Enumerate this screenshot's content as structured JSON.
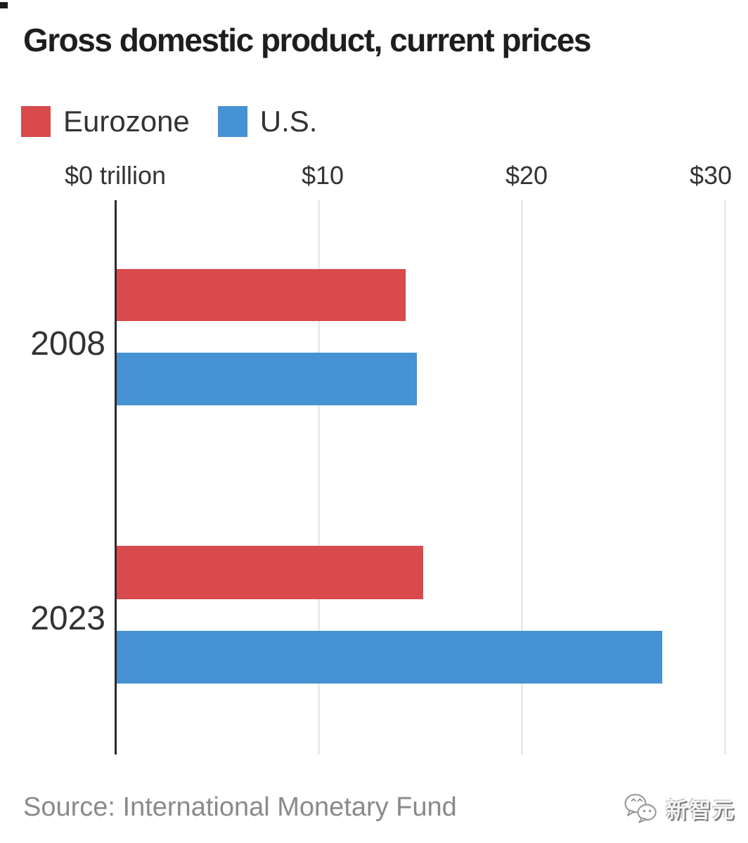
{
  "title": "Gross domestic product, current prices",
  "legend": [
    {
      "label": "Eurozone",
      "color": "#d84a4b"
    },
    {
      "label": "U.S.",
      "color": "#4692d2"
    }
  ],
  "chart_data": {
    "type": "bar",
    "orientation": "horizontal",
    "title": "Gross domestic product, current prices",
    "unit": "trillion US dollars",
    "categories": [
      "2008",
      "2023"
    ],
    "series": [
      {
        "name": "Eurozone",
        "color": "#d84a4b",
        "values": [
          14.22,
          15.07
        ]
      },
      {
        "name": "U.S.",
        "color": "#4692d2",
        "values": [
          14.77,
          26.86
        ]
      }
    ],
    "xlabel_ticks": [
      "$0 trillion",
      "$10",
      "$20",
      "$30"
    ],
    "xlim": [
      0,
      30
    ],
    "grid": true,
    "legend_position": "top-left",
    "axis_color": "#2b2b2b",
    "gridline_color": "#eaeaea"
  },
  "source": "Source: International Monetary Fund",
  "watermark": {
    "text": "新智元",
    "icon": "chat-bubbles-logo"
  }
}
